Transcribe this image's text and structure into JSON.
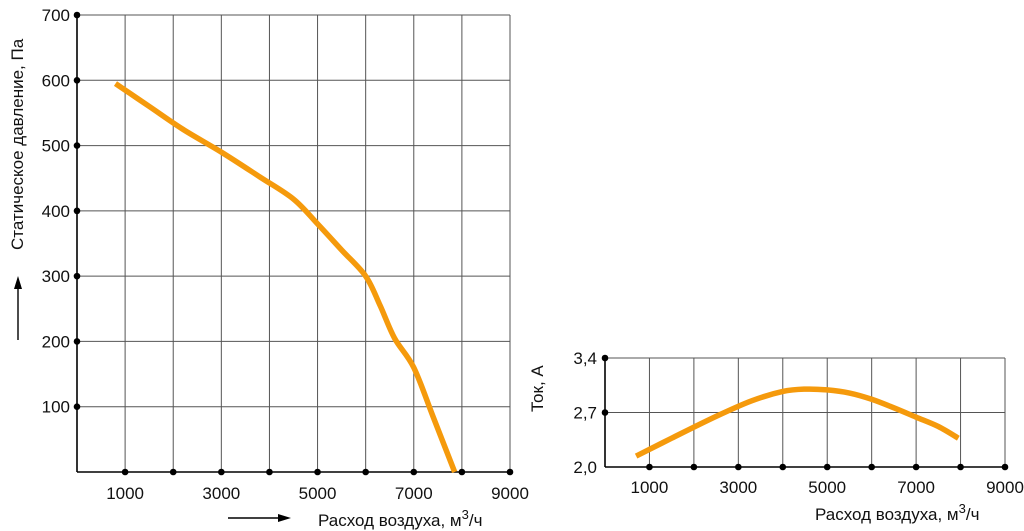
{
  "charts": {
    "pressure": {
      "ylabel": "Статическое давление, Па",
      "xlabel_main": "Расход воздуха, м",
      "xlabel_sup": "3",
      "xlabel_tail": "/ч"
    },
    "current": {
      "ylabel": "Ток, А",
      "xlabel_main": "Расход воздуха, м",
      "xlabel_sup": "3",
      "xlabel_tail": "/ч"
    }
  },
  "curve_color": "#f59a0c",
  "chart_data": [
    {
      "type": "line",
      "ylabel": "Статическое давление, Па",
      "xlabel": "Расход воздуха, м³/ч",
      "xlim": [
        0,
        9000
      ],
      "ylim": [
        0,
        700
      ],
      "x_ticks": [
        1000,
        3000,
        5000,
        7000,
        9000
      ],
      "x_gridlines": [
        1000,
        2000,
        3000,
        4000,
        5000,
        6000,
        7000,
        8000,
        9000
      ],
      "y_ticks": [
        100,
        200,
        300,
        400,
        500,
        600,
        700
      ],
      "y_tick_labels": [
        "100",
        "200",
        "300",
        "400",
        "500",
        "600",
        "700"
      ],
      "grid": true,
      "series": [
        {
          "x": [
            800,
            1500,
            2200,
            3000,
            3800,
            4500,
            5000,
            5500,
            6000,
            6300,
            6600,
            7000,
            7400,
            7850
          ],
          "y": [
            595,
            560,
            525,
            490,
            452,
            418,
            380,
            340,
            300,
            255,
            205,
            160,
            85,
            0
          ]
        }
      ]
    },
    {
      "type": "line",
      "ylabel": "Ток, А",
      "xlabel": "Расход воздуха, м³/ч",
      "xlim": [
        0,
        9000
      ],
      "ylim": [
        2.0,
        3.4
      ],
      "x_ticks": [
        1000,
        3000,
        5000,
        7000,
        9000
      ],
      "x_gridlines": [
        1000,
        2000,
        3000,
        4000,
        5000,
        6000,
        7000,
        8000,
        9000
      ],
      "y_ticks": [
        2.0,
        2.7,
        3.4
      ],
      "y_tick_labels": [
        "2,0",
        "2,7",
        "3,4"
      ],
      "grid": true,
      "series": [
        {
          "x": [
            700,
            1500,
            2500,
            3300,
            4000,
            4500,
            5000,
            5500,
            6000,
            6500,
            7000,
            7500,
            7950
          ],
          "y": [
            2.14,
            2.37,
            2.65,
            2.85,
            2.97,
            3.0,
            2.99,
            2.95,
            2.87,
            2.76,
            2.64,
            2.52,
            2.37
          ]
        }
      ]
    }
  ]
}
